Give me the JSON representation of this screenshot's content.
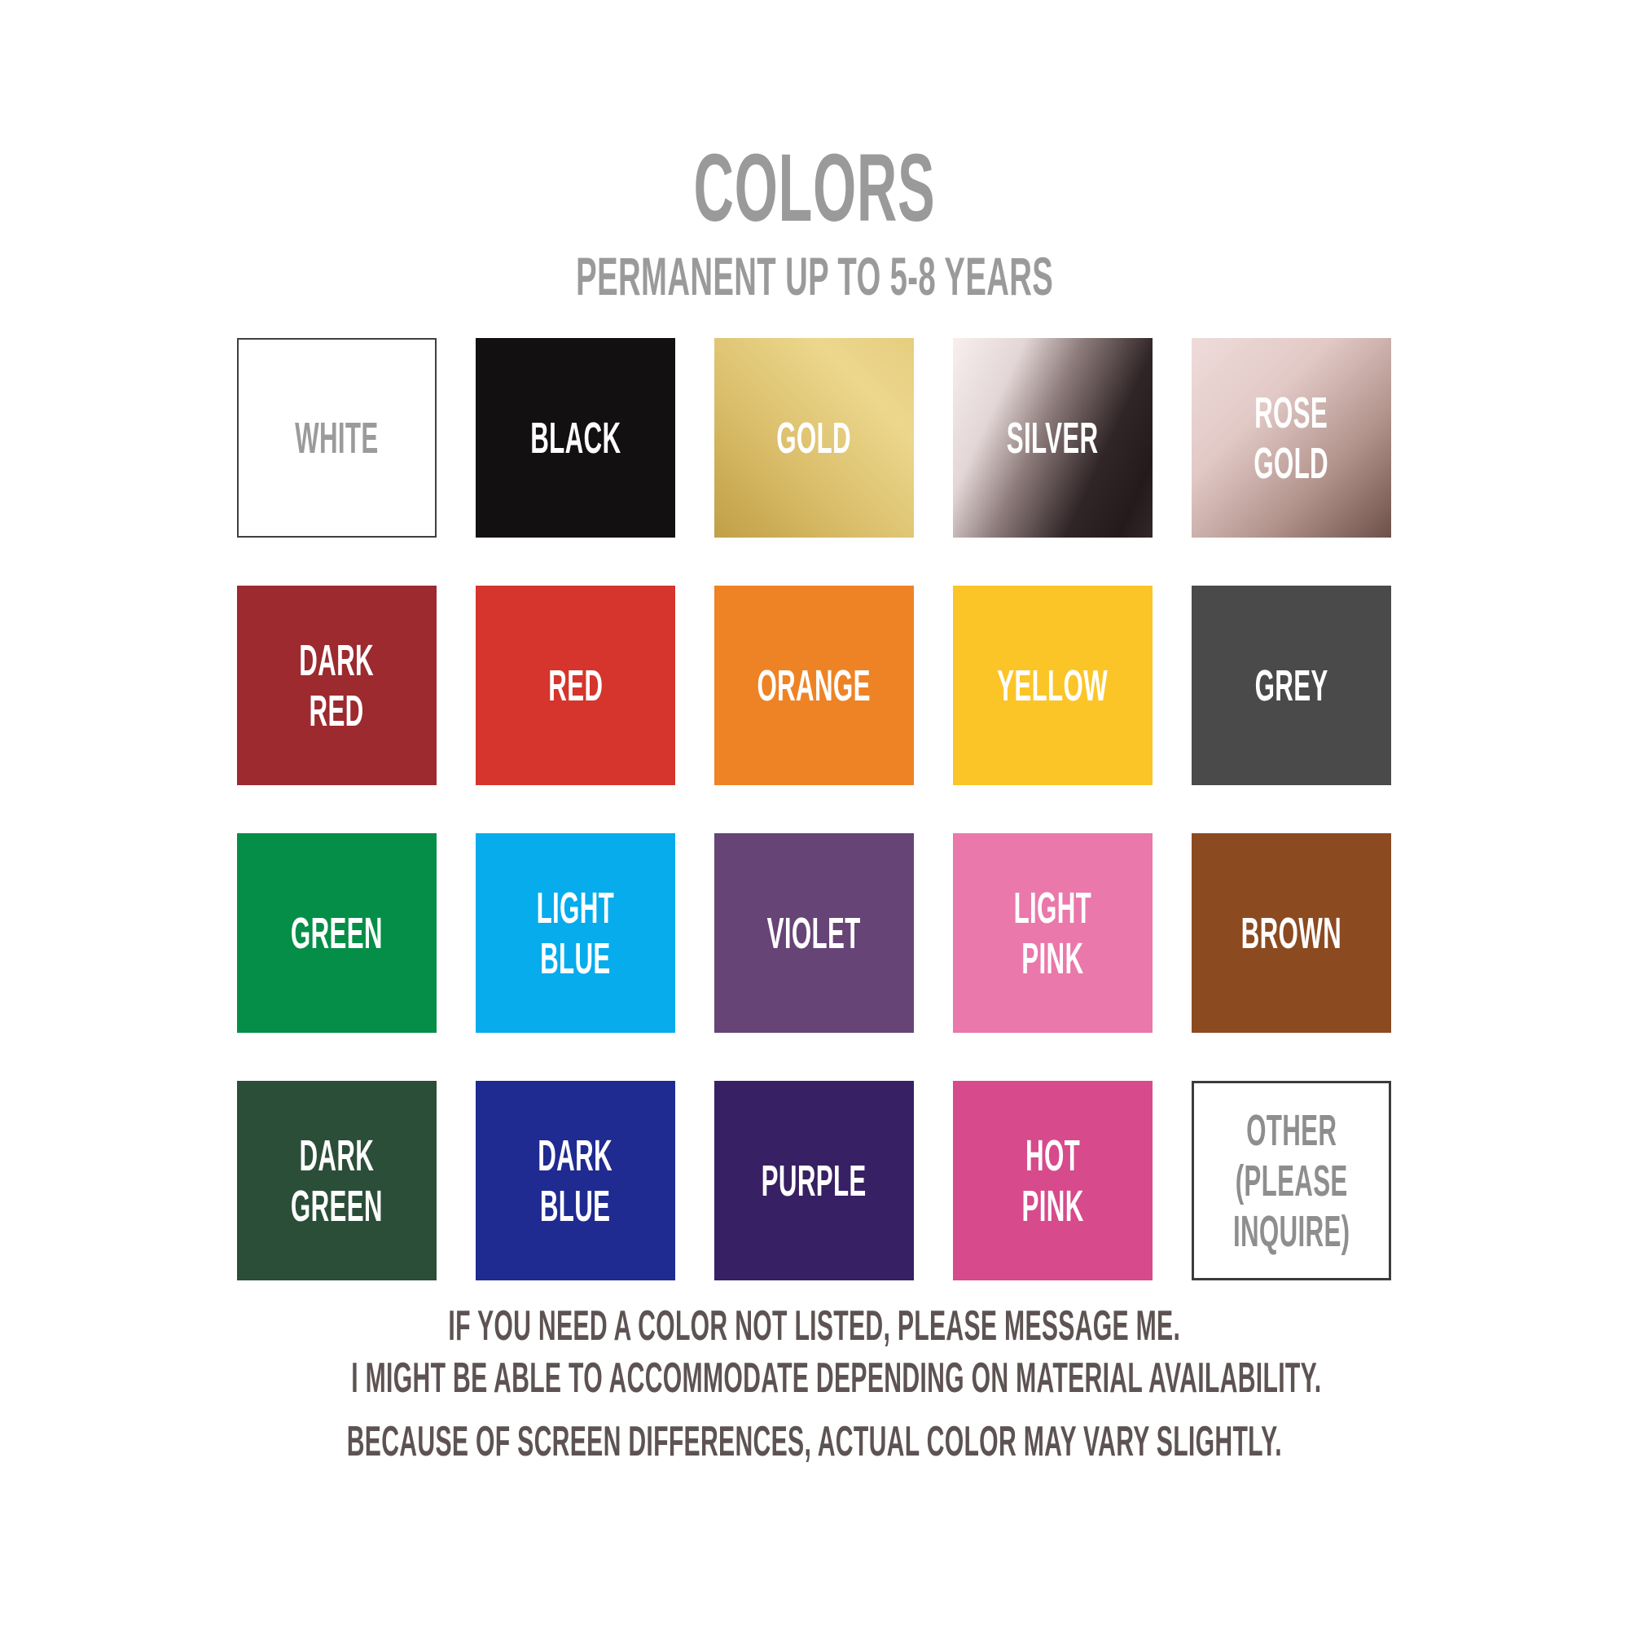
{
  "header": {
    "title": "COLORS",
    "subtitle": "PERMANENT UP TO 5-8 YEARS",
    "text_color": "#9A9A9A"
  },
  "grid": {
    "swatches": [
      {
        "name": "white",
        "label": "WHITE",
        "bg": "#FFFFFF",
        "text_color": "#9B9B9B",
        "border": "2px solid #3F3F3F"
      },
      {
        "name": "black",
        "label": "BLACK",
        "bg": "#131011",
        "text_color": "#FFFFFF"
      },
      {
        "name": "gold",
        "label": "GOLD",
        "bg": "linear-gradient(45deg, #C09F46 0%, #D9BC68 35%, #ECD78D 75%, #E6CD7F 100%)",
        "text_color": "#FFFFFF",
        "gradient_stops": [
          "#C09F46",
          "#D9BC68",
          "#ECD78D",
          "#E6CD7F"
        ]
      },
      {
        "name": "silver",
        "label": "SILVER",
        "bg": "linear-gradient(115deg, #F7EFEE 0%, #E3D6D6 25%, #8D7B7B 45%, #302527 70%, #241A1C 88%, #332728 100%)",
        "text_color": "#FFFFFF",
        "gradient_stops": [
          "#F7EFEE",
          "#E3D6D6",
          "#8D7B7B",
          "#302527",
          "#241A1C",
          "#332728"
        ]
      },
      {
        "name": "rose-gold",
        "label": "ROSE\nGOLD",
        "bg": "linear-gradient(135deg, #EEDCDA 0%, #E2C9C6 35%, #B2938C 68%, #6D5049 100%)",
        "text_color": "#FFFFFF",
        "gradient_stops": [
          "#EEDCDA",
          "#E2C9C6",
          "#B2938C",
          "#6D5049"
        ]
      },
      {
        "name": "dark-red",
        "label": "DARK\nRED",
        "bg": "#9C2A2F",
        "text_color": "#FFFFFF"
      },
      {
        "name": "red",
        "label": "RED",
        "bg": "#D5352C",
        "text_color": "#FFFFFF"
      },
      {
        "name": "orange",
        "label": "ORANGE",
        "bg": "#EE8326",
        "text_color": "#FFFFFF"
      },
      {
        "name": "yellow",
        "label": "YELLOW",
        "bg": "#FCC527",
        "text_color": "#FFFFFF"
      },
      {
        "name": "grey",
        "label": "GREY",
        "bg": "#4B4A4B",
        "text_color": "#FFFFFF"
      },
      {
        "name": "green",
        "label": "GREEN",
        "bg": "#048E47",
        "text_color": "#FFFFFF"
      },
      {
        "name": "light-blue",
        "label": "LIGHT\nBLUE",
        "bg": "#06ACEC",
        "text_color": "#FFFFFF"
      },
      {
        "name": "violet",
        "label": "VIOLET",
        "bg": "#664476",
        "text_color": "#FFFFFF"
      },
      {
        "name": "light-pink",
        "label": "LIGHT\nPINK",
        "bg": "#EA78AA",
        "text_color": "#FFFFFF"
      },
      {
        "name": "brown",
        "label": "BROWN",
        "bg": "#8C4A20",
        "text_color": "#FFFFFF"
      },
      {
        "name": "dark-green",
        "label": "DARK\nGREEN",
        "bg": "#2B4E38",
        "text_color": "#FFFFFF"
      },
      {
        "name": "dark-blue",
        "label": "DARK\nBLUE",
        "bg": "#1F2B90",
        "text_color": "#FFFFFF"
      },
      {
        "name": "purple",
        "label": "PURPLE",
        "bg": "#372063",
        "text_color": "#FFFFFF"
      },
      {
        "name": "hot-pink",
        "label": "HOT\nPINK",
        "bg": "#D74A8C",
        "text_color": "#FFFFFF"
      },
      {
        "name": "other",
        "label": "OTHER\n(PLEASE\nINQUIRE)",
        "bg": "#FFFFFF",
        "text_color": "#8E8E8E",
        "border": "3px solid #3C3C3C"
      }
    ]
  },
  "notes": {
    "line1": "IF YOU NEED A COLOR NOT LISTED, PLEASE MESSAGE ME.",
    "line2": "I MIGHT BE ABLE TO ACCOMMODATE DEPENDING ON MATERIAL AVAILABILITY.",
    "line3": "BECAUSE OF SCREEN DIFFERENCES, ACTUAL COLOR MAY VARY SLIGHTLY.",
    "text_color": "#5D5352"
  }
}
